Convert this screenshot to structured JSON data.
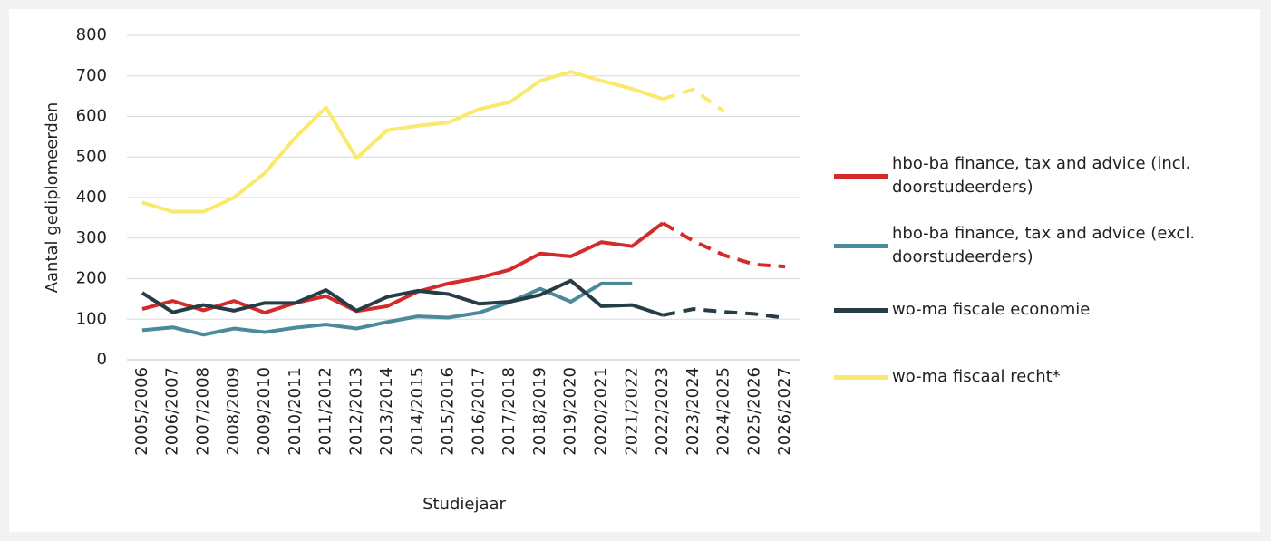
{
  "chart_data": {
    "type": "line",
    "x_label": "Studiejaar",
    "y_label": "Aantal gediplomeerden",
    "categories": [
      "2005/2006",
      "2006/2007",
      "2007/2008",
      "2008/2009",
      "2009/2010",
      "2010/2011",
      "2011/2012",
      "2012/2013",
      "2013/2014",
      "2014/2015",
      "2015/2016",
      "2016/2017",
      "2017/2018",
      "2018/2019",
      "2019/2020",
      "2020/2021",
      "2021/2022",
      "2022/2023",
      "2023/2024",
      "2024/2025",
      "2025/2026",
      "2026/2027"
    ],
    "series": [
      {
        "name": "hbo-ba finance, tax and advice (incl. doorstudeerders)",
        "color": "#d42a2a",
        "dashed_from": "2022/2023",
        "values": [
          125,
          145,
          122,
          145,
          116,
          140,
          157,
          120,
          132,
          168,
          188,
          202,
          222,
          262,
          255,
          290,
          280,
          337,
          293,
          258,
          235,
          230
        ]
      },
      {
        "name": "hbo-ba finance, tax and advice (excl. doorstudeerders)",
        "color": "#4a8a9a",
        "values": [
          73,
          80,
          62,
          77,
          68,
          79,
          87,
          77,
          93,
          107,
          104,
          116,
          142,
          175,
          143,
          188,
          188,
          null,
          null,
          null,
          null,
          null
        ]
      },
      {
        "name": "wo-ma fiscale economie",
        "color": "#263d45",
        "dashed_from": "2022/2023",
        "values": [
          165,
          117,
          135,
          121,
          140,
          140,
          172,
          121,
          155,
          170,
          162,
          138,
          143,
          160,
          195,
          132,
          135,
          110,
          125,
          118,
          113,
          103
        ]
      },
      {
        "name": "wo-ma fiscaal recht*",
        "color": "#fbe96e",
        "dashed_from": "2022/2023",
        "values": [
          388,
          365,
          365,
          400,
          460,
          548,
          622,
          497,
          566,
          577,
          585,
          618,
          635,
          688,
          710,
          688,
          668,
          643,
          667,
          612,
          null,
          null
        ]
      }
    ],
    "ylim": [
      0,
      800
    ],
    "yticks": [
      0,
      100,
      200,
      300,
      400,
      500,
      600,
      700,
      800
    ],
    "grid": true,
    "legend": "right"
  }
}
